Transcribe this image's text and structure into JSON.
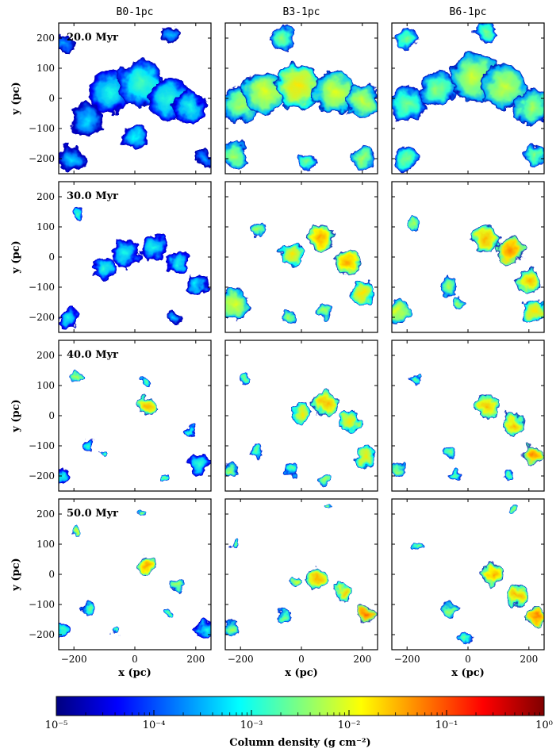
{
  "chart_data": {
    "type": "heatmap",
    "columns": [
      "B0-1pc",
      "B3-1pc",
      "B6-1pc"
    ],
    "rows": [
      "20.0 Myr",
      "30.0 Myr",
      "40.0 Myr",
      "50.0 Myr"
    ],
    "xlabel": "x (pc)",
    "ylabel": "y (pc)",
    "xlim": [
      -250,
      250
    ],
    "ylim": [
      -250,
      250
    ],
    "xticks": [
      -200,
      0,
      200
    ],
    "yticks": [
      200,
      100,
      0,
      -100,
      -200
    ],
    "tick_labels": [
      "−200",
      "−100",
      "0",
      "100",
      "200"
    ],
    "colorbar": {
      "label": "Column density  (g cm⁻²)",
      "scale": "log",
      "range": [
        1e-05,
        1
      ],
      "tick_labels": [
        "10⁻⁵",
        "10⁻⁴",
        "10⁻³",
        "10⁻²",
        "10⁻¹",
        "10⁰"
      ],
      "colormap": [
        "#00007f",
        "#0000ff",
        "#007fff",
        "#00ffff",
        "#7fff7f",
        "#ffff00",
        "#ff7f00",
        "#ff0000",
        "#7f0000"
      ]
    },
    "clouds": [
      [
        [
          {
            "x": -80,
            "y": 20,
            "r": 70,
            "v": 0.3
          },
          {
            "x": 20,
            "y": 50,
            "r": 75,
            "v": 0.35
          },
          {
            "x": 110,
            "y": 0,
            "r": 70,
            "v": 0.32
          },
          {
            "x": 180,
            "y": -30,
            "r": 55,
            "v": 0.3
          },
          {
            "x": -160,
            "y": -70,
            "r": 55,
            "v": 0.25
          },
          {
            "x": -210,
            "y": -200,
            "r": 45,
            "v": 0.25
          },
          {
            "x": 0,
            "y": -130,
            "r": 40,
            "v": 0.28
          },
          {
            "x": -230,
            "y": 180,
            "r": 30,
            "v": 0.2
          },
          {
            "x": 120,
            "y": 210,
            "r": 30,
            "v": 0.22
          },
          {
            "x": 230,
            "y": -200,
            "r": 30,
            "v": 0.2
          }
        ],
        [
          {
            "x": -200,
            "y": -20,
            "r": 60,
            "v": 0.45
          },
          {
            "x": -120,
            "y": 20,
            "r": 70,
            "v": 0.5
          },
          {
            "x": -10,
            "y": 40,
            "r": 75,
            "v": 0.55
          },
          {
            "x": 110,
            "y": 20,
            "r": 70,
            "v": 0.5
          },
          {
            "x": 200,
            "y": -10,
            "r": 55,
            "v": 0.48
          },
          {
            "x": -60,
            "y": 200,
            "r": 40,
            "v": 0.42
          },
          {
            "x": -220,
            "y": -190,
            "r": 45,
            "v": 0.45
          },
          {
            "x": 200,
            "y": -200,
            "r": 40,
            "v": 0.45
          },
          {
            "x": 20,
            "y": -210,
            "r": 30,
            "v": 0.4
          }
        ],
        [
          {
            "x": -200,
            "y": -20,
            "r": 60,
            "v": 0.4
          },
          {
            "x": -100,
            "y": 30,
            "r": 60,
            "v": 0.42
          },
          {
            "x": 20,
            "y": 70,
            "r": 80,
            "v": 0.48
          },
          {
            "x": 120,
            "y": 40,
            "r": 75,
            "v": 0.48
          },
          {
            "x": 210,
            "y": -30,
            "r": 60,
            "v": 0.45
          },
          {
            "x": -200,
            "y": 200,
            "r": 35,
            "v": 0.4
          },
          {
            "x": 60,
            "y": 220,
            "r": 35,
            "v": 0.4
          },
          {
            "x": -200,
            "y": -200,
            "r": 40,
            "v": 0.4
          },
          {
            "x": 220,
            "y": -190,
            "r": 35,
            "v": 0.42
          }
        ]
      ],
      [
        [
          {
            "x": -100,
            "y": -40,
            "r": 40,
            "v": 0.32
          },
          {
            "x": -30,
            "y": 10,
            "r": 45,
            "v": 0.3
          },
          {
            "x": 60,
            "y": 30,
            "r": 45,
            "v": 0.3
          },
          {
            "x": 140,
            "y": -20,
            "r": 38,
            "v": 0.3
          },
          {
            "x": 200,
            "y": -90,
            "r": 35,
            "v": 0.28
          },
          {
            "x": -190,
            "y": 140,
            "r": 18,
            "v": 0.35
          },
          {
            "x": -220,
            "y": -200,
            "r": 35,
            "v": 0.3
          },
          {
            "x": 130,
            "y": -200,
            "r": 25,
            "v": 0.25
          }
        ],
        [
          {
            "x": -30,
            "y": 10,
            "r": 40,
            "v": 0.55
          },
          {
            "x": 60,
            "y": 60,
            "r": 45,
            "v": 0.62
          },
          {
            "x": 150,
            "y": -20,
            "r": 42,
            "v": 0.62
          },
          {
            "x": 200,
            "y": -120,
            "r": 40,
            "v": 0.55
          },
          {
            "x": -220,
            "y": -160,
            "r": 50,
            "v": 0.5
          },
          {
            "x": -140,
            "y": 90,
            "r": 25,
            "v": 0.45
          },
          {
            "x": -40,
            "y": -200,
            "r": 25,
            "v": 0.45
          },
          {
            "x": 80,
            "y": -180,
            "r": 25,
            "v": 0.45
          }
        ],
        [
          {
            "x": 60,
            "y": 60,
            "r": 45,
            "v": 0.6
          },
          {
            "x": 140,
            "y": 20,
            "r": 45,
            "v": 0.65
          },
          {
            "x": 200,
            "y": -80,
            "r": 40,
            "v": 0.6
          },
          {
            "x": 220,
            "y": -180,
            "r": 40,
            "v": 0.55
          },
          {
            "x": -230,
            "y": -180,
            "r": 40,
            "v": 0.5
          },
          {
            "x": -60,
            "y": -100,
            "r": 30,
            "v": 0.45
          },
          {
            "x": -180,
            "y": 110,
            "r": 20,
            "v": 0.45
          },
          {
            "x": -30,
            "y": -150,
            "r": 20,
            "v": 0.45
          }
        ]
      ],
      [
        [
          {
            "x": 40,
            "y": 30,
            "r": 32,
            "v": 0.6
          },
          {
            "x": -150,
            "y": -100,
            "r": 20,
            "v": 0.35
          },
          {
            "x": -240,
            "y": -200,
            "r": 25,
            "v": 0.3
          },
          {
            "x": -190,
            "y": 130,
            "r": 15,
            "v": 0.45
          },
          {
            "x": 210,
            "y": -160,
            "r": 35,
            "v": 0.32
          },
          {
            "x": 180,
            "y": -50,
            "r": 15,
            "v": 0.35
          },
          {
            "x": 40,
            "y": 110,
            "r": 15,
            "v": 0.4
          },
          {
            "x": -100,
            "y": -120,
            "r": 12,
            "v": 0.4
          },
          {
            "x": 100,
            "y": -200,
            "r": 12,
            "v": 0.4
          }
        ],
        [
          {
            "x": 0,
            "y": 10,
            "r": 35,
            "v": 0.55
          },
          {
            "x": 80,
            "y": 40,
            "r": 40,
            "v": 0.6
          },
          {
            "x": 160,
            "y": -20,
            "r": 35,
            "v": 0.55
          },
          {
            "x": 210,
            "y": -140,
            "r": 35,
            "v": 0.55
          },
          {
            "x": -230,
            "y": -180,
            "r": 25,
            "v": 0.45
          },
          {
            "x": -150,
            "y": -120,
            "r": 20,
            "v": 0.4
          },
          {
            "x": -30,
            "y": -180,
            "r": 25,
            "v": 0.4
          },
          {
            "x": -180,
            "y": 120,
            "r": 15,
            "v": 0.4
          },
          {
            "x": 80,
            "y": -210,
            "r": 20,
            "v": 0.45
          }
        ],
        [
          {
            "x": 60,
            "y": 30,
            "r": 40,
            "v": 0.6
          },
          {
            "x": 150,
            "y": -30,
            "r": 38,
            "v": 0.6
          },
          {
            "x": 210,
            "y": -130,
            "r": 35,
            "v": 0.65
          },
          {
            "x": -230,
            "y": -180,
            "r": 25,
            "v": 0.45
          },
          {
            "x": -60,
            "y": -120,
            "r": 20,
            "v": 0.42
          },
          {
            "x": -170,
            "y": 120,
            "r": 18,
            "v": 0.4
          },
          {
            "x": -40,
            "y": -200,
            "r": 20,
            "v": 0.4
          },
          {
            "x": 130,
            "y": -200,
            "r": 15,
            "v": 0.4
          }
        ]
      ],
      [
        [
          {
            "x": 40,
            "y": 30,
            "r": 30,
            "v": 0.62
          },
          {
            "x": -190,
            "y": 140,
            "r": 15,
            "v": 0.5
          },
          {
            "x": -150,
            "y": -115,
            "r": 25,
            "v": 0.4
          },
          {
            "x": 230,
            "y": -180,
            "r": 30,
            "v": 0.3
          },
          {
            "x": 140,
            "y": -40,
            "r": 18,
            "v": 0.45
          },
          {
            "x": -240,
            "y": -190,
            "r": 20,
            "v": 0.35
          },
          {
            "x": 20,
            "y": 200,
            "r": 12,
            "v": 0.45
          },
          {
            "x": -60,
            "y": -190,
            "r": 12,
            "v": 0.4
          },
          {
            "x": 110,
            "y": -130,
            "r": 12,
            "v": 0.4
          }
        ],
        [
          {
            "x": 50,
            "y": -10,
            "r": 35,
            "v": 0.6
          },
          {
            "x": 140,
            "y": -60,
            "r": 30,
            "v": 0.58
          },
          {
            "x": 210,
            "y": -130,
            "r": 32,
            "v": 0.68
          },
          {
            "x": -230,
            "y": -180,
            "r": 25,
            "v": 0.45
          },
          {
            "x": -60,
            "y": -140,
            "r": 20,
            "v": 0.42
          },
          {
            "x": -10,
            "y": -30,
            "r": 20,
            "v": 0.5
          },
          {
            "x": -220,
            "y": 100,
            "r": 15,
            "v": 0.42
          },
          {
            "x": 80,
            "y": 230,
            "r": 10,
            "v": 0.45
          }
        ],
        [
          {
            "x": 80,
            "y": 0,
            "r": 35,
            "v": 0.62
          },
          {
            "x": 160,
            "y": -70,
            "r": 35,
            "v": 0.6
          },
          {
            "x": 220,
            "y": -140,
            "r": 30,
            "v": 0.65
          },
          {
            "x": -60,
            "y": -120,
            "r": 25,
            "v": 0.45
          },
          {
            "x": -160,
            "y": 90,
            "r": 15,
            "v": 0.42
          },
          {
            "x": 150,
            "y": 220,
            "r": 12,
            "v": 0.45
          },
          {
            "x": -10,
            "y": -210,
            "r": 20,
            "v": 0.4
          }
        ]
      ]
    ]
  }
}
